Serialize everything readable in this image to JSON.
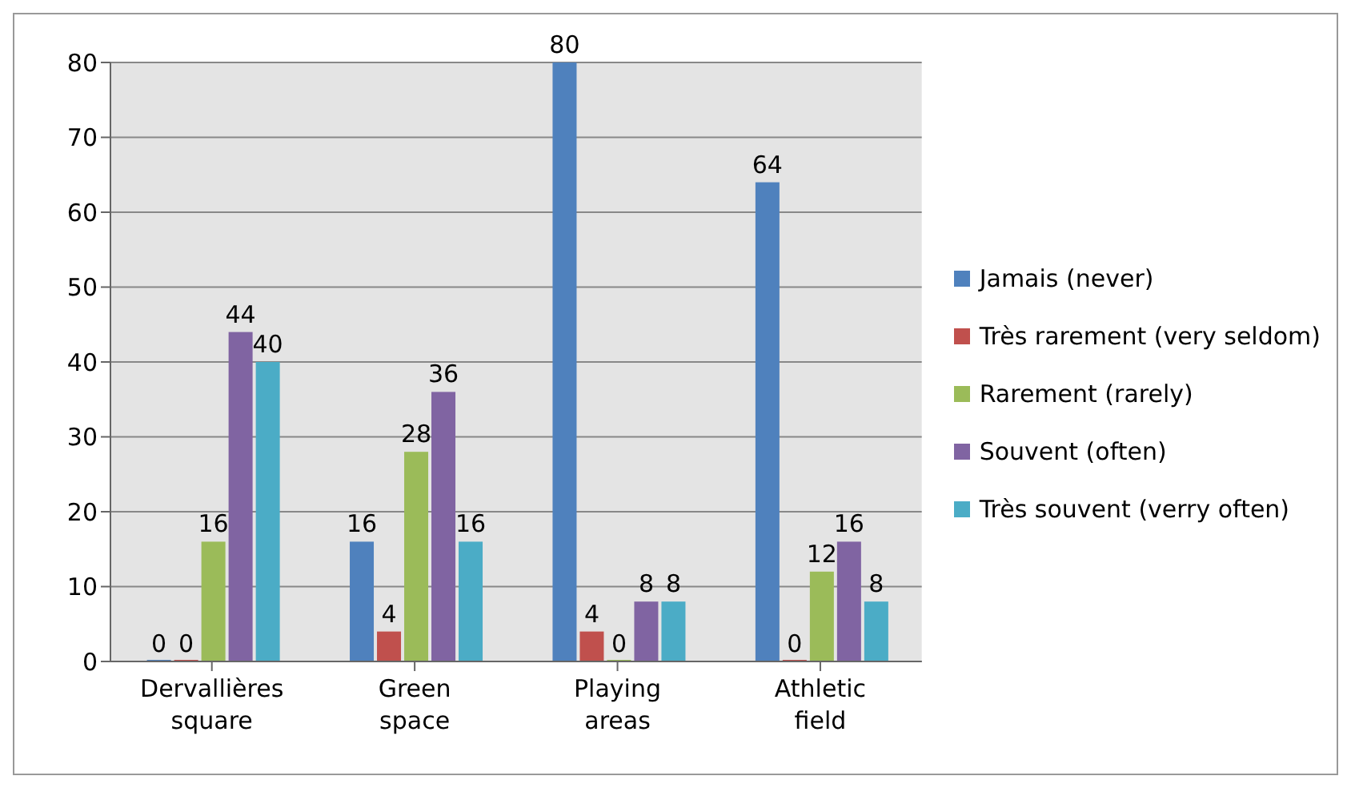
{
  "chart_data": {
    "type": "bar",
    "categories": [
      "Dervallières square",
      "Green space",
      "Playing areas",
      "Athletic field"
    ],
    "series": [
      {
        "name": "Jamais (never)",
        "color": "#4f81bd",
        "values": [
          0,
          16,
          80,
          64
        ]
      },
      {
        "name": "Très rarement (very seldom)",
        "color": "#c0504d",
        "values": [
          0,
          4,
          4,
          0
        ]
      },
      {
        "name": "Rarement (rarely)",
        "color": "#9bbb59",
        "values": [
          16,
          28,
          0,
          12
        ]
      },
      {
        "name": "Souvent (often)",
        "color": "#8064a2",
        "values": [
          44,
          36,
          8,
          16
        ]
      },
      {
        "name": "Très souvent (verry often)",
        "color": "#4bacc6",
        "values": [
          40,
          16,
          8,
          8
        ]
      }
    ],
    "ylim": [
      0,
      80
    ],
    "yticks": [
      0,
      10,
      20,
      30,
      40,
      50,
      60,
      70,
      80
    ],
    "grid": "y",
    "legend": "right",
    "data_labels": true
  }
}
